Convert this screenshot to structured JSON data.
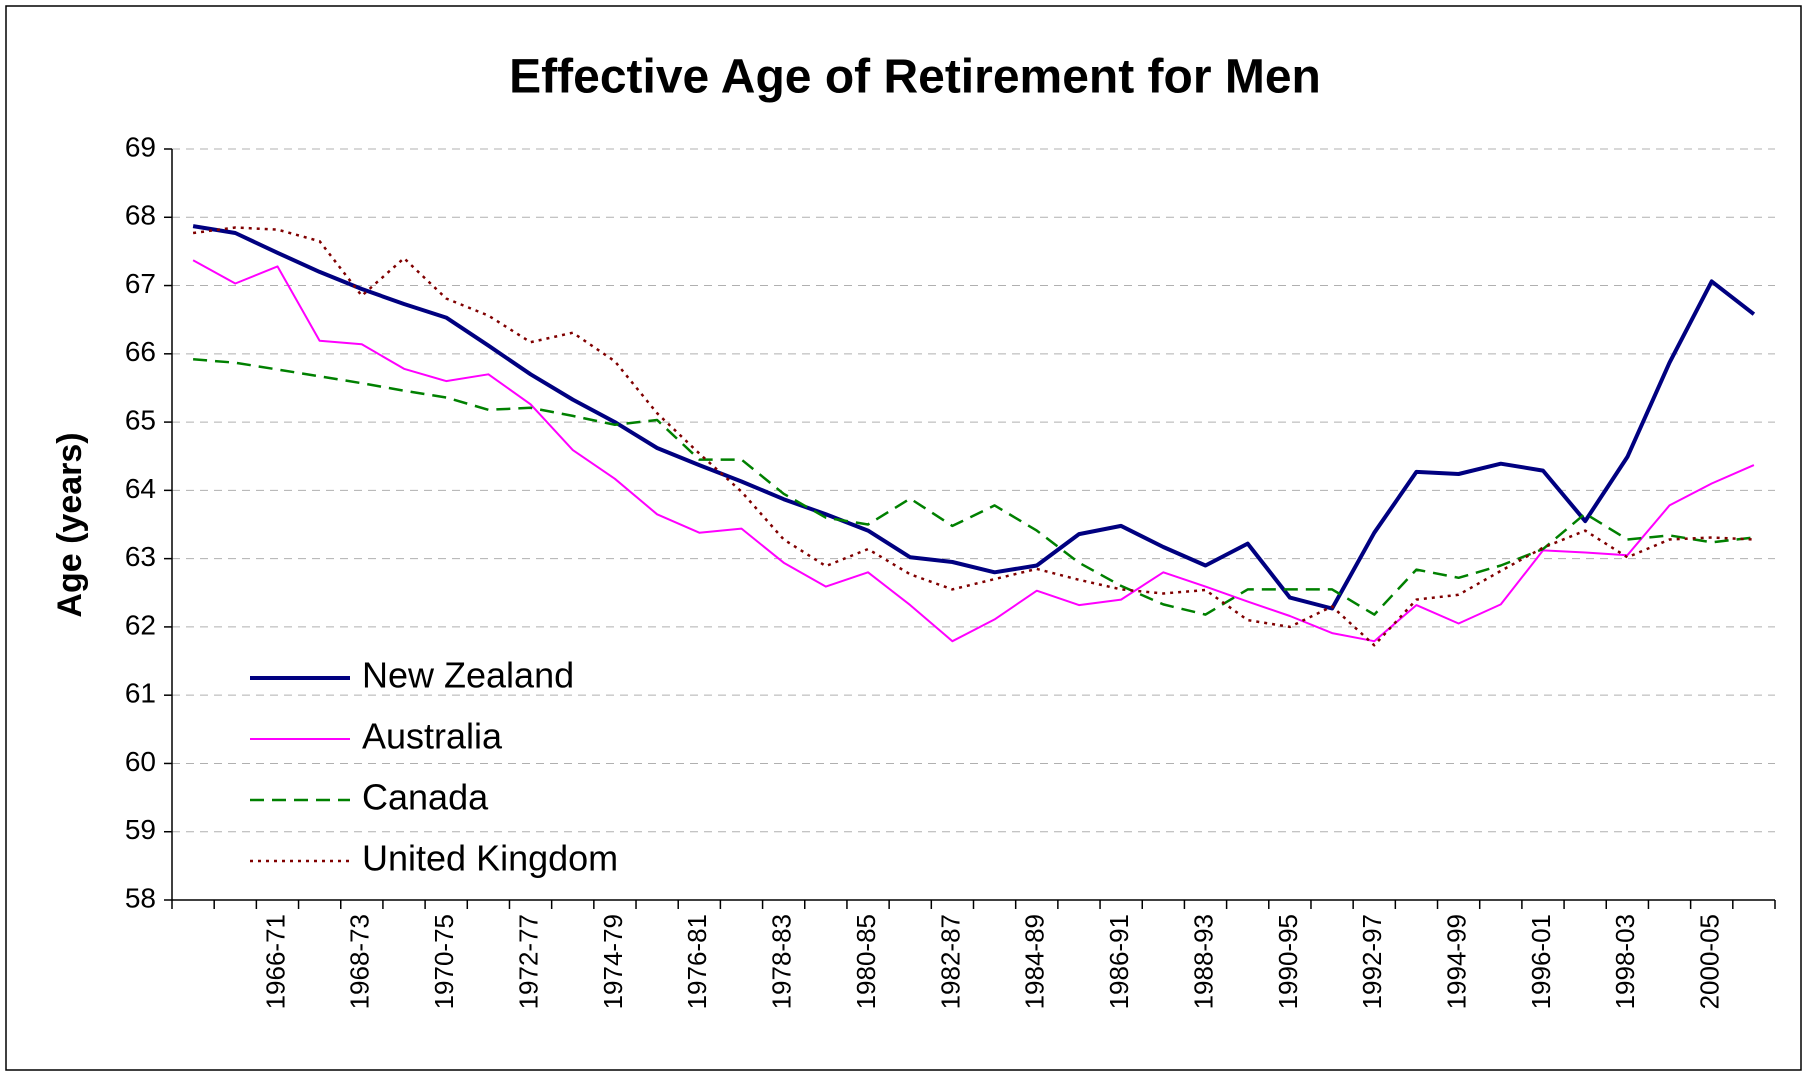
{
  "chart_data": {
    "type": "line",
    "title": "Effective Age of Retirement for Men",
    "y_label": "Age (years)",
    "categories": [
      null,
      null,
      "1966-71",
      null,
      "1968-73",
      null,
      "1970-75",
      null,
      "1972-77",
      null,
      "1974-79",
      null,
      "1976-81",
      null,
      "1978-83",
      null,
      "1980-85",
      null,
      "1982-87",
      null,
      "1984-89",
      null,
      "1986-91",
      null,
      "1988-93",
      null,
      "1990-95",
      null,
      "1992-97",
      null,
      "1994-99",
      null,
      "1996-01",
      null,
      "1998-03",
      null,
      "2000-05",
      null
    ],
    "series": [
      {
        "name": "New Zealand",
        "color": "#000080",
        "line_style": "solid",
        "line_width": 4,
        "values": [
          67.87,
          67.77,
          67.48,
          67.2,
          66.95,
          66.73,
          66.53,
          66.12,
          65.7,
          65.33,
          65.0,
          64.62,
          64.37,
          64.13,
          63.87,
          63.65,
          63.41,
          63.02,
          62.95,
          62.8,
          62.9,
          63.36,
          63.48,
          63.17,
          62.9,
          63.22,
          62.43,
          62.27,
          63.38,
          64.27,
          64.24,
          64.39,
          64.29,
          63.55,
          64.49,
          65.87,
          67.06,
          66.58
        ]
      },
      {
        "name": "Australia",
        "color": "#ff00ff",
        "line_style": "solid",
        "line_width": 2,
        "values": [
          67.37,
          67.03,
          67.28,
          66.19,
          66.14,
          65.78,
          65.6,
          65.7,
          65.26,
          64.59,
          64.17,
          63.65,
          63.38,
          63.44,
          62.94,
          62.59,
          62.8,
          62.32,
          61.79,
          62.11,
          62.53,
          62.32,
          62.4,
          62.8,
          62.59,
          62.37,
          62.16,
          61.91,
          61.79,
          62.32,
          62.05,
          62.33,
          63.12,
          63.09,
          63.05,
          63.78,
          64.1,
          64.37
        ]
      },
      {
        "name": "Canada",
        "color": "#008000",
        "line_style": "dashed",
        "line_width": 2.5,
        "values": [
          65.92,
          65.87,
          65.77,
          65.67,
          65.57,
          65.46,
          65.36,
          65.18,
          65.21,
          65.09,
          64.96,
          65.03,
          64.45,
          64.45,
          63.95,
          63.6,
          63.5,
          63.88,
          63.48,
          63.78,
          63.41,
          62.94,
          62.6,
          62.33,
          62.18,
          62.55,
          62.55,
          62.55,
          62.18,
          62.84,
          62.72,
          62.9,
          63.14,
          63.66,
          63.28,
          63.34,
          63.24,
          63.31
        ]
      },
      {
        "name": "United Kingdom",
        "color": "#800000",
        "line_style": "dotted",
        "line_width": 2.5,
        "values": [
          67.77,
          67.85,
          67.82,
          67.65,
          66.85,
          67.4,
          66.81,
          66.56,
          66.17,
          66.31,
          65.89,
          65.13,
          64.54,
          63.98,
          63.28,
          62.89,
          63.14,
          62.77,
          62.55,
          62.7,
          62.85,
          62.69,
          62.55,
          62.49,
          62.54,
          62.1,
          62.0,
          62.3,
          61.73,
          62.4,
          62.47,
          62.82,
          63.16,
          63.41,
          63.02,
          63.28,
          63.31,
          63.28
        ]
      }
    ],
    "ylim": [
      58,
      69
    ],
    "yticks": [
      58,
      59,
      60,
      61,
      62,
      63,
      64,
      65,
      66,
      67,
      68,
      69
    ],
    "grid": true
  }
}
